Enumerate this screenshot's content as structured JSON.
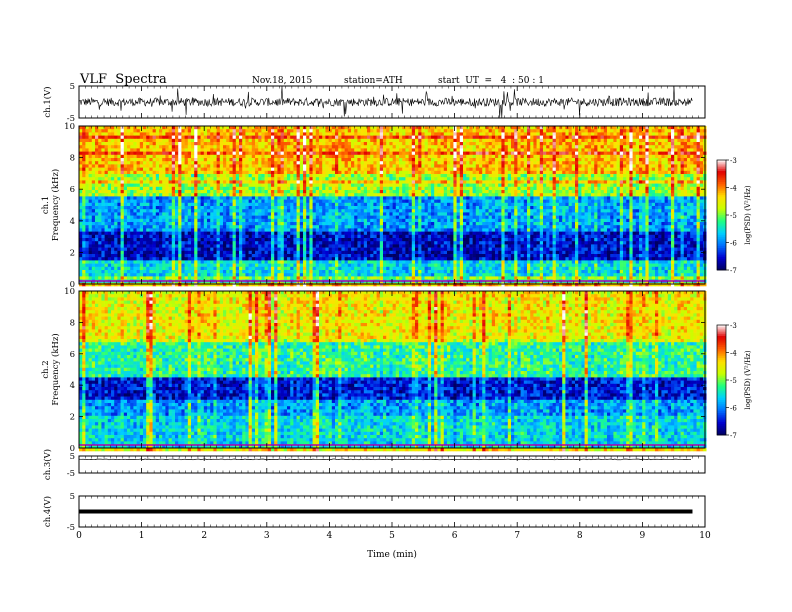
{
  "header": {
    "title": "VLF  Spectra",
    "date": "Nov.18, 2015",
    "station": "station=ATH",
    "start_ut": "start  UT  =   4  : 50 : 1"
  },
  "chart_data": [
    {
      "type": "line",
      "name": "ch1-waveform",
      "ylabel": "ch.1(V)",
      "ylim": [
        -5,
        5
      ],
      "yticks": [
        "5",
        "-5"
      ],
      "x_range_min": [
        0,
        9.8
      ],
      "approx_level": 0
    },
    {
      "type": "heatmap",
      "name": "ch1-spectrogram",
      "ylabel_lines": [
        "ch.1",
        "Frequency  (kHz)"
      ],
      "ylim": [
        0,
        10
      ],
      "yticks": [
        "0",
        "2",
        "4",
        "6",
        "8",
        "10"
      ],
      "colorbar": {
        "label": "log(PSD) (V²/Hz)",
        "range": [
          -7,
          -3
        ],
        "ticks": [
          "-3",
          "-4",
          "-5",
          "-6",
          "-7"
        ]
      },
      "bands": [
        {
          "from": 0.0,
          "to": 1.5,
          "level": -5.6
        },
        {
          "from": 1.5,
          "to": 3.5,
          "level": -6.6
        },
        {
          "from": 3.5,
          "to": 5.5,
          "level": -5.9
        },
        {
          "from": 5.5,
          "to": 7.0,
          "level": -4.9
        },
        {
          "from": 7.0,
          "to": 10.0,
          "level": -4.3
        }
      ]
    },
    {
      "type": "heatmap",
      "name": "ch2-spectrogram",
      "ylabel_lines": [
        "ch.2",
        "Frequency  (kHz)"
      ],
      "ylim": [
        0,
        10
      ],
      "yticks": [
        "0",
        "2",
        "4",
        "6",
        "8",
        "10"
      ],
      "colorbar": {
        "label": "log(PSD) (V²/Hz)",
        "range": [
          -7,
          -3
        ],
        "ticks": [
          "-3",
          "-4",
          "-5",
          "-6",
          "-7"
        ]
      },
      "bands": [
        {
          "from": 0.0,
          "to": 2.0,
          "level": -5.6
        },
        {
          "from": 2.0,
          "to": 3.0,
          "level": -5.9
        },
        {
          "from": 3.0,
          "to": 4.5,
          "level": -6.5
        },
        {
          "from": 4.5,
          "to": 7.0,
          "level": -5.3
        },
        {
          "from": 7.0,
          "to": 10.0,
          "level": -4.5
        }
      ]
    },
    {
      "type": "line",
      "name": "ch3-waveform",
      "ylabel": "ch.3(V)",
      "ylim": [
        -5,
        5
      ],
      "yticks": [
        "5",
        "-5"
      ],
      "x_range_min": [
        0,
        9.8
      ],
      "approx_level": 3
    },
    {
      "type": "line",
      "name": "ch4-waveform",
      "ylabel": "ch.4(V)",
      "ylim": [
        -5,
        5
      ],
      "yticks": [
        "5",
        "-5"
      ],
      "x_range_min": [
        0,
        9.8
      ],
      "approx_level": 0
    }
  ],
  "xaxis": {
    "label": "Time  (min)",
    "range": [
      0,
      10
    ],
    "ticks": [
      "0",
      "1",
      "2",
      "3",
      "4",
      "5",
      "6",
      "7",
      "8",
      "9",
      "10"
    ]
  },
  "colors": {
    "colormap": [
      "#000060",
      "#0000d0",
      "#0070ff",
      "#00d0ff",
      "#20ff80",
      "#c8ff00",
      "#ffe000",
      "#ff6000",
      "#e00000",
      "#ffffff"
    ]
  }
}
